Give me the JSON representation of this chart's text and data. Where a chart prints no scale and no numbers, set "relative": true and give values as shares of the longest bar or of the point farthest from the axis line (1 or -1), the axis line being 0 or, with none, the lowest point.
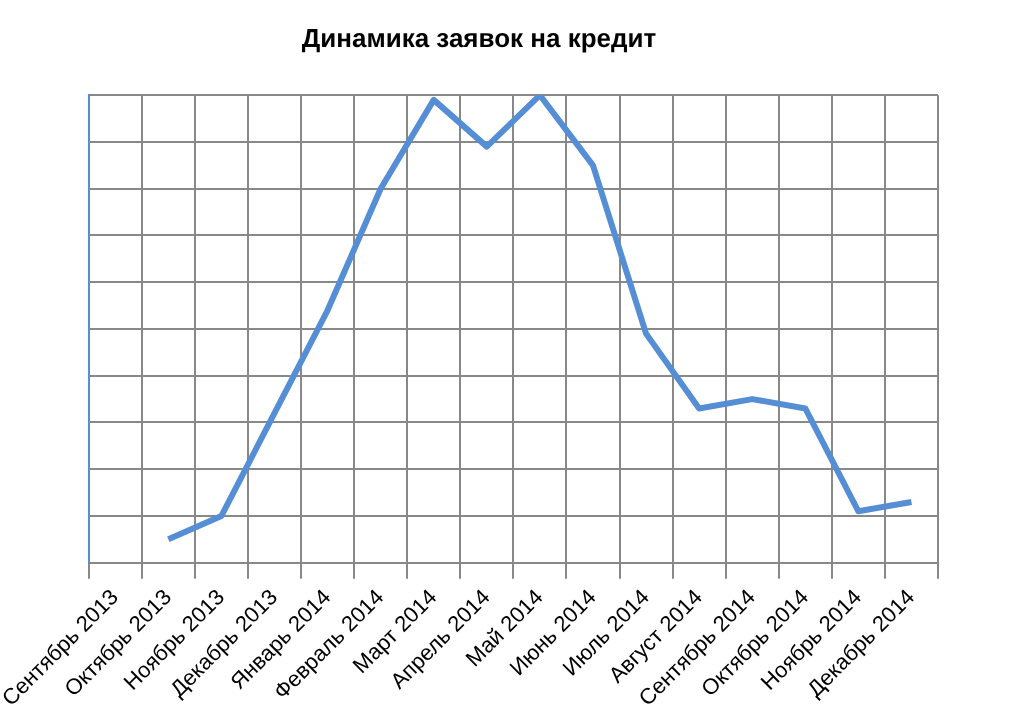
{
  "chart_data": {
    "type": "line",
    "title": "Динамика заявок на кредит",
    "relative": true,
    "grid": true,
    "legend": false,
    "marker": "none",
    "line_style": "solid",
    "categories": [
      "Сентябрь 2013",
      "Октябрь 2013",
      "Ноябрь 2013",
      "Декабрь 2013",
      "Январь 2014",
      "Февраль 2014",
      "Март 2014",
      "Апрель 2014",
      "Май 2014",
      "Июнь 2014",
      "Июль 2014",
      "Август 2014",
      "Сентябрь 2014",
      "Октябрь 2014",
      "Ноябрь 2014",
      "Декабрь 2014"
    ],
    "series": [
      {
        "color": "#558ed5",
        "values": [
          null,
          0.05,
          0.1,
          0.32,
          0.54,
          0.8,
          0.99,
          0.89,
          1,
          0.85,
          0.49,
          0.33,
          0.35,
          0.33,
          0.11,
          0.13
        ]
      }
    ]
  }
}
